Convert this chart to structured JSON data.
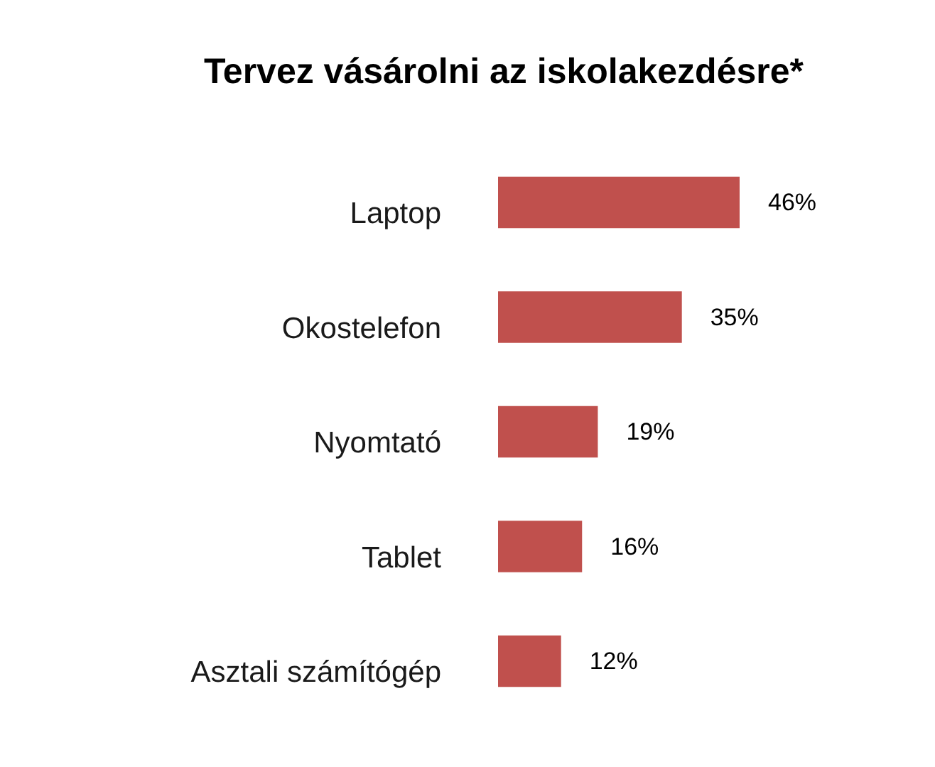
{
  "chart_data": {
    "type": "bar",
    "orientation": "horizontal",
    "title": "Tervez vásárolni az iskolakezdésre*",
    "categories": [
      "Laptop",
      "Okostelefon",
      "Nyomtató",
      "Tablet",
      "Asztali számítógép"
    ],
    "values": [
      46,
      35,
      19,
      16,
      12
    ],
    "value_labels": [
      "46%",
      "35%",
      "19%",
      "16%",
      "12%"
    ],
    "color": "#c0504d"
  }
}
